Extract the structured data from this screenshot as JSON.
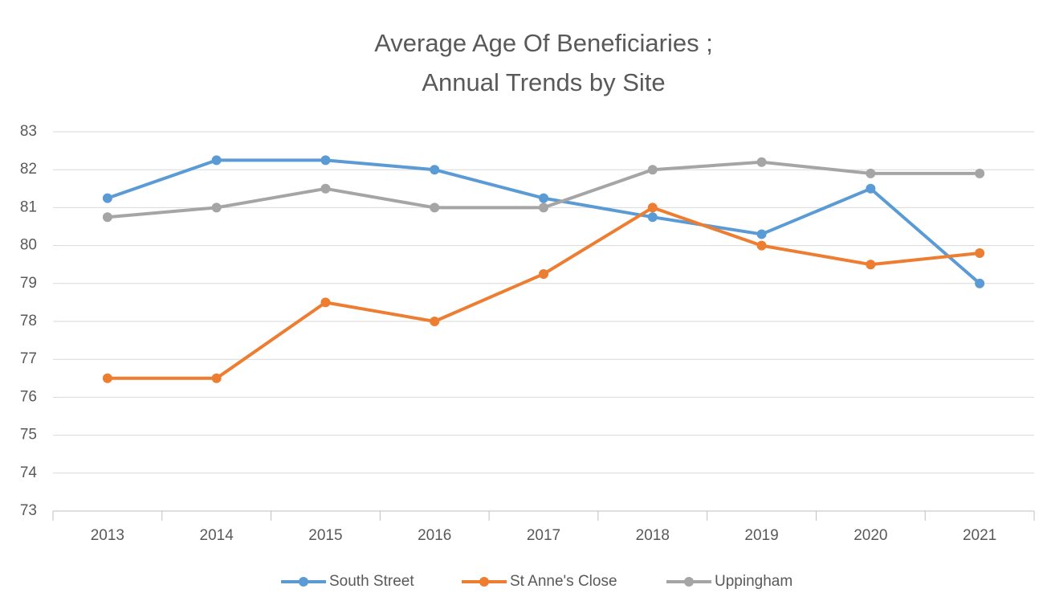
{
  "chart_data": {
    "type": "line",
    "title": [
      "Average Age Of Beneficiaries ;",
      "Annual Trends by Site"
    ],
    "categories": [
      "2013",
      "2014",
      "2015",
      "2016",
      "2017",
      "2018",
      "2019",
      "2020",
      "2021"
    ],
    "series": [
      {
        "name": "South Street",
        "color": "#5b9bd5",
        "values": [
          81.25,
          82.25,
          82.25,
          82,
          81.25,
          80.75,
          80.3,
          81.5,
          79
        ]
      },
      {
        "name": "St Anne's Close",
        "color": "#ed7d31",
        "values": [
          76.5,
          76.5,
          78.5,
          78,
          79.25,
          81,
          80,
          79.5,
          79.8
        ]
      },
      {
        "name": "Uppingham",
        "color": "#a5a5a5",
        "values": [
          80.75,
          81,
          81.5,
          81,
          81,
          82,
          82.2,
          81.9,
          81.9
        ]
      }
    ],
    "ylim": [
      73,
      83
    ],
    "yticks": [
      73,
      74,
      75,
      76,
      77,
      78,
      79,
      80,
      81,
      82,
      83
    ],
    "grid": true,
    "legend": "bottom"
  }
}
